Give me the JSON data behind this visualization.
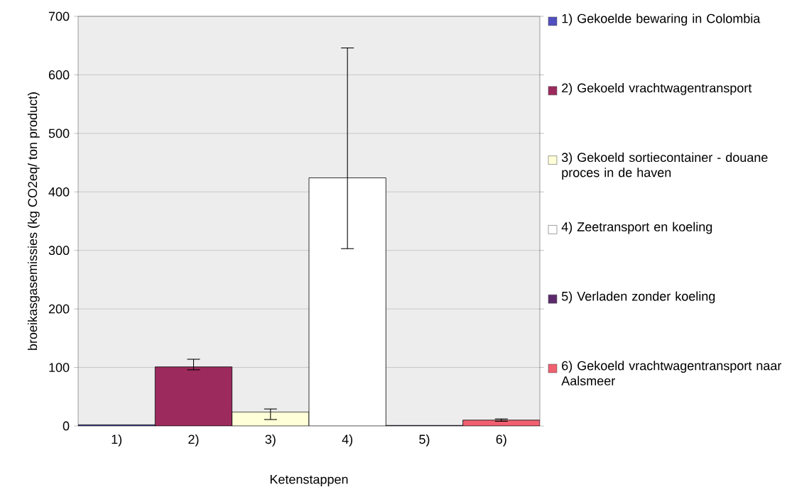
{
  "chart_data": {
    "type": "bar",
    "xlabel": "Ketenstappen",
    "ylabel": "broeikasgasemissies (kg CO2eq/ ton product)",
    "categories": [
      "1)",
      "2)",
      "3)",
      "4)",
      "5)",
      "6)"
    ],
    "series": [
      {
        "name": "1) Gekoelde bewaring in Colombia",
        "color": "#5050c0",
        "values": [
          2,
          null,
          null,
          null,
          null,
          null
        ]
      },
      {
        "name": "2) Gekoeld vrachtwagentransport",
        "color": "#9c2a5c",
        "values": [
          null,
          101,
          null,
          null,
          null,
          null
        ],
        "errors": [
          null,
          [
            96,
            114
          ],
          null,
          null,
          null,
          null
        ]
      },
      {
        "name": "3) Gekoeld sortiecontainer - douane proces in de haven",
        "color": "#ffffd8",
        "values": [
          null,
          null,
          24,
          null,
          null,
          null
        ],
        "errors": [
          null,
          null,
          [
            11,
            29
          ],
          null,
          null,
          null
        ]
      },
      {
        "name": "4) Zeetransport en koeling",
        "color": "#ffffff",
        "values": [
          null,
          null,
          null,
          424,
          null,
          null
        ],
        "errors": [
          null,
          null,
          null,
          [
            303,
            646
          ],
          null,
          null
        ]
      },
      {
        "name": "5) Verladen zonder koeling",
        "color": "#5c2a6c",
        "values": [
          null,
          null,
          null,
          null,
          1,
          null
        ]
      },
      {
        "name": "6) Gekoeld vrachtwagentransport naar Aalsmeer",
        "color": "#f06070",
        "values": [
          null,
          null,
          null,
          null,
          null,
          10
        ],
        "errors": [
          null,
          null,
          null,
          null,
          null,
          2
        ]
      }
    ],
    "ylim": [
      0,
      700
    ],
    "yticks": [
      0,
      100,
      200,
      300,
      400,
      500,
      600,
      700
    ],
    "grid": "y",
    "legend": "right"
  }
}
